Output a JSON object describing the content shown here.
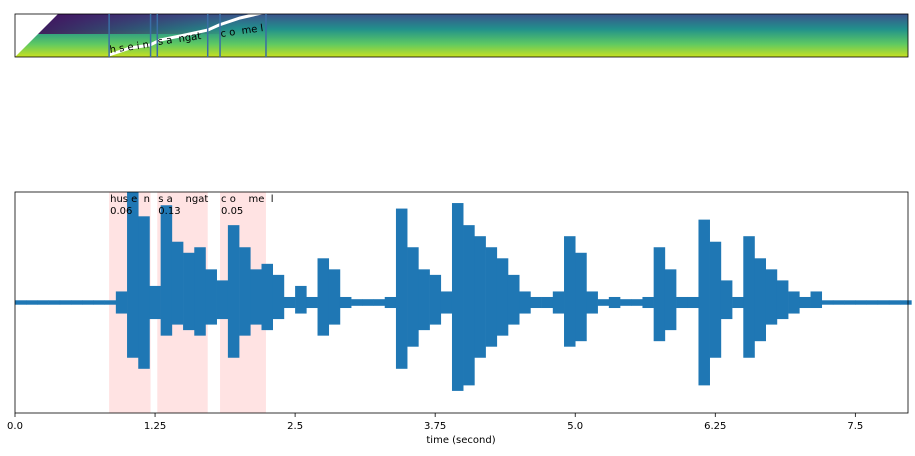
{
  "chart_data": {
    "type": "waveform",
    "x_label": "time (second)",
    "xlim": [
      0,
      7.97
    ],
    "xticks": [
      {
        "value": 0,
        "label": "0.0"
      },
      1.25,
      2.5,
      3.75,
      {
        "value": 5,
        "label": "5.0"
      },
      6.25,
      7.5
    ],
    "ylim": [
      -1,
      1
    ],
    "color": "#1f77b4",
    "segment_color": "#ffcccc",
    "boundary_color": "#3a6ea5",
    "x": [
      0.0,
      0.1,
      0.2,
      0.3,
      0.4,
      0.5,
      0.6,
      0.7,
      0.8,
      0.9,
      1.0,
      1.1,
      1.2,
      1.3,
      1.4,
      1.5,
      1.6,
      1.7,
      1.8,
      1.9,
      2.0,
      2.1,
      2.2,
      2.3,
      2.4,
      2.5,
      2.6,
      2.7,
      2.8,
      2.9,
      3.0,
      3.1,
      3.2,
      3.3,
      3.4,
      3.5,
      3.6,
      3.7,
      3.8,
      3.9,
      4.0,
      4.1,
      4.2,
      4.3,
      4.4,
      4.5,
      4.6,
      4.7,
      4.8,
      4.9,
      5.0,
      5.1,
      5.2,
      5.3,
      5.4,
      5.5,
      5.6,
      5.7,
      5.8,
      5.9,
      6.0,
      6.1,
      6.2,
      6.3,
      6.4,
      6.5,
      6.6,
      6.7,
      6.8,
      6.9,
      7.0,
      7.1,
      7.2,
      7.3,
      7.4,
      7.5,
      7.6,
      7.7,
      7.8,
      7.9
    ],
    "upper": [
      0.02,
      0.02,
      0.02,
      0.02,
      0.02,
      0.02,
      0.02,
      0.02,
      0.02,
      0.1,
      1.0,
      0.78,
      0.15,
      0.88,
      0.55,
      0.45,
      0.5,
      0.3,
      0.2,
      0.7,
      0.5,
      0.3,
      0.35,
      0.25,
      0.05,
      0.15,
      0.05,
      0.4,
      0.3,
      0.05,
      0.03,
      0.03,
      0.03,
      0.05,
      0.85,
      0.5,
      0.3,
      0.25,
      0.1,
      0.9,
      0.7,
      0.6,
      0.5,
      0.4,
      0.25,
      0.1,
      0.05,
      0.05,
      0.1,
      0.6,
      0.45,
      0.1,
      0.03,
      0.05,
      0.03,
      0.03,
      0.05,
      0.5,
      0.3,
      0.05,
      0.05,
      0.75,
      0.55,
      0.2,
      0.05,
      0.6,
      0.4,
      0.3,
      0.2,
      0.1,
      0.05,
      0.1,
      0.02,
      0.02,
      0.02,
      0.02,
      0.02,
      0.02,
      0.02,
      0.02
    ],
    "lower": [
      -0.02,
      -0.02,
      -0.02,
      -0.02,
      -0.02,
      -0.02,
      -0.02,
      -0.02,
      -0.02,
      -0.1,
      -0.5,
      -0.6,
      -0.15,
      -0.3,
      -0.2,
      -0.25,
      -0.3,
      -0.2,
      -0.15,
      -0.5,
      -0.3,
      -0.2,
      -0.25,
      -0.15,
      -0.05,
      -0.1,
      -0.05,
      -0.3,
      -0.2,
      -0.05,
      -0.03,
      -0.03,
      -0.03,
      -0.05,
      -0.6,
      -0.4,
      -0.25,
      -0.2,
      -0.1,
      -0.8,
      -0.75,
      -0.5,
      -0.4,
      -0.3,
      -0.2,
      -0.1,
      -0.05,
      -0.05,
      -0.1,
      -0.4,
      -0.35,
      -0.1,
      -0.03,
      -0.05,
      -0.03,
      -0.03,
      -0.05,
      -0.35,
      -0.25,
      -0.05,
      -0.05,
      -0.75,
      -0.5,
      -0.15,
      -0.05,
      -0.5,
      -0.35,
      -0.2,
      -0.15,
      -0.1,
      -0.05,
      -0.05,
      -0.02,
      -0.02,
      -0.02,
      -0.02,
      -0.02,
      -0.02,
      -0.02,
      -0.02
    ],
    "segments": [
      {
        "start": 0.84,
        "end": 1.21,
        "label": "hus e  n",
        "trellis_label": "h s e i n",
        "score": 0.06
      },
      {
        "start": 1.27,
        "end": 1.72,
        "label": "s a    ngat",
        "trellis_label": "s a  ngat",
        "score": 0.13
      },
      {
        "start": 1.83,
        "end": 2.24,
        "label": "c o    me  l",
        "trellis_label": "c o  me l",
        "score": 0.05
      }
    ]
  }
}
